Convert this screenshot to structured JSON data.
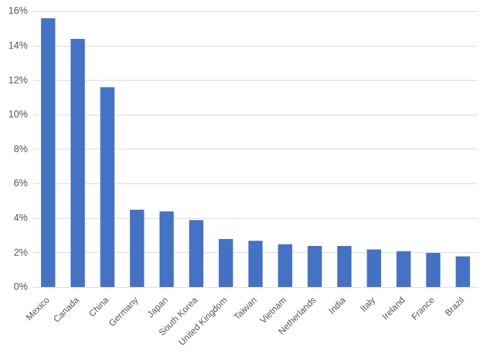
{
  "chart_data": {
    "type": "bar",
    "categories": [
      "Mexico",
      "Canada",
      "China",
      "Germany",
      "Japan",
      "South Korea",
      "United Kingdom",
      "Taiwan",
      "Vietnam",
      "Netherlands",
      "India",
      "Italy",
      "Ireland",
      "France",
      "Brazil"
    ],
    "values": [
      15.6,
      14.4,
      11.6,
      4.5,
      4.4,
      3.9,
      2.8,
      2.7,
      2.5,
      2.4,
      2.4,
      2.2,
      2.1,
      2.0,
      1.8
    ],
    "color": "#4472c4",
    "ylim": [
      0,
      16
    ],
    "yticks": [
      {
        "value": 0,
        "label": "0%"
      },
      {
        "value": 2,
        "label": "2%"
      },
      {
        "value": 4,
        "label": "4%"
      },
      {
        "value": 6,
        "label": "6%"
      },
      {
        "value": 8,
        "label": "8%"
      },
      {
        "value": 10,
        "label": "10%"
      },
      {
        "value": 12,
        "label": "12%"
      },
      {
        "value": 14,
        "label": "14%"
      },
      {
        "value": 16,
        "label": "16%"
      }
    ],
    "grid": true
  }
}
